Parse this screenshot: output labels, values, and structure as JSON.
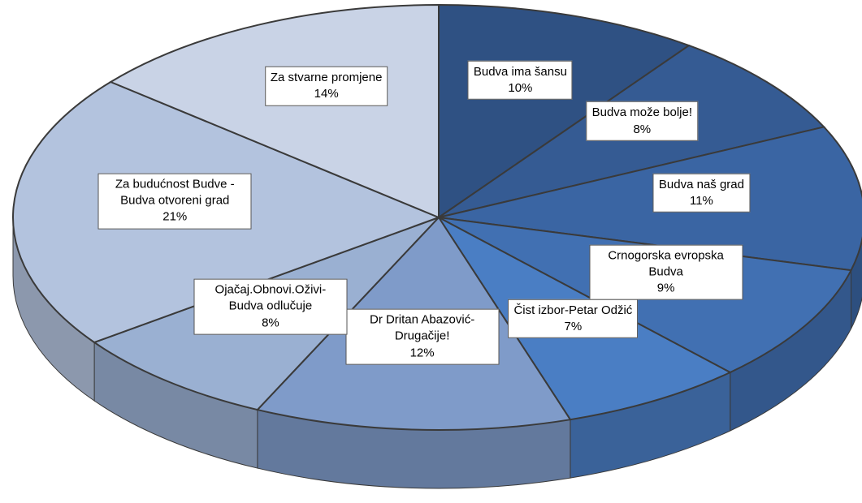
{
  "chart_data": {
    "type": "pie3d",
    "categories": [
      "Budva ima šansu",
      "Budva može bolje!",
      "Budva naš grad",
      "Crnogorska evropska Budva",
      "Čist izbor-Petar Odžić",
      "Dr Dritan Abazović-Drugačije!",
      "Ojačaj.Obnovi.Oživi-Budva odlučuje",
      "Za budućnost Budve - Budva otvoreni grad",
      "Za stvarne promjene"
    ],
    "values": [
      10,
      8,
      11,
      9,
      7,
      12,
      8,
      21,
      14
    ],
    "value_labels": [
      "10%",
      "8%",
      "11%",
      "9%",
      "7%",
      "12%",
      "8%",
      "21%",
      "14%"
    ],
    "colors": [
      "#2f5183",
      "#355b93",
      "#3a65a3",
      "#4170b2",
      "#4a7ec4",
      "#7f9bc9",
      "#9ab0d2",
      "#b3c3de",
      "#c9d3e6"
    ]
  }
}
